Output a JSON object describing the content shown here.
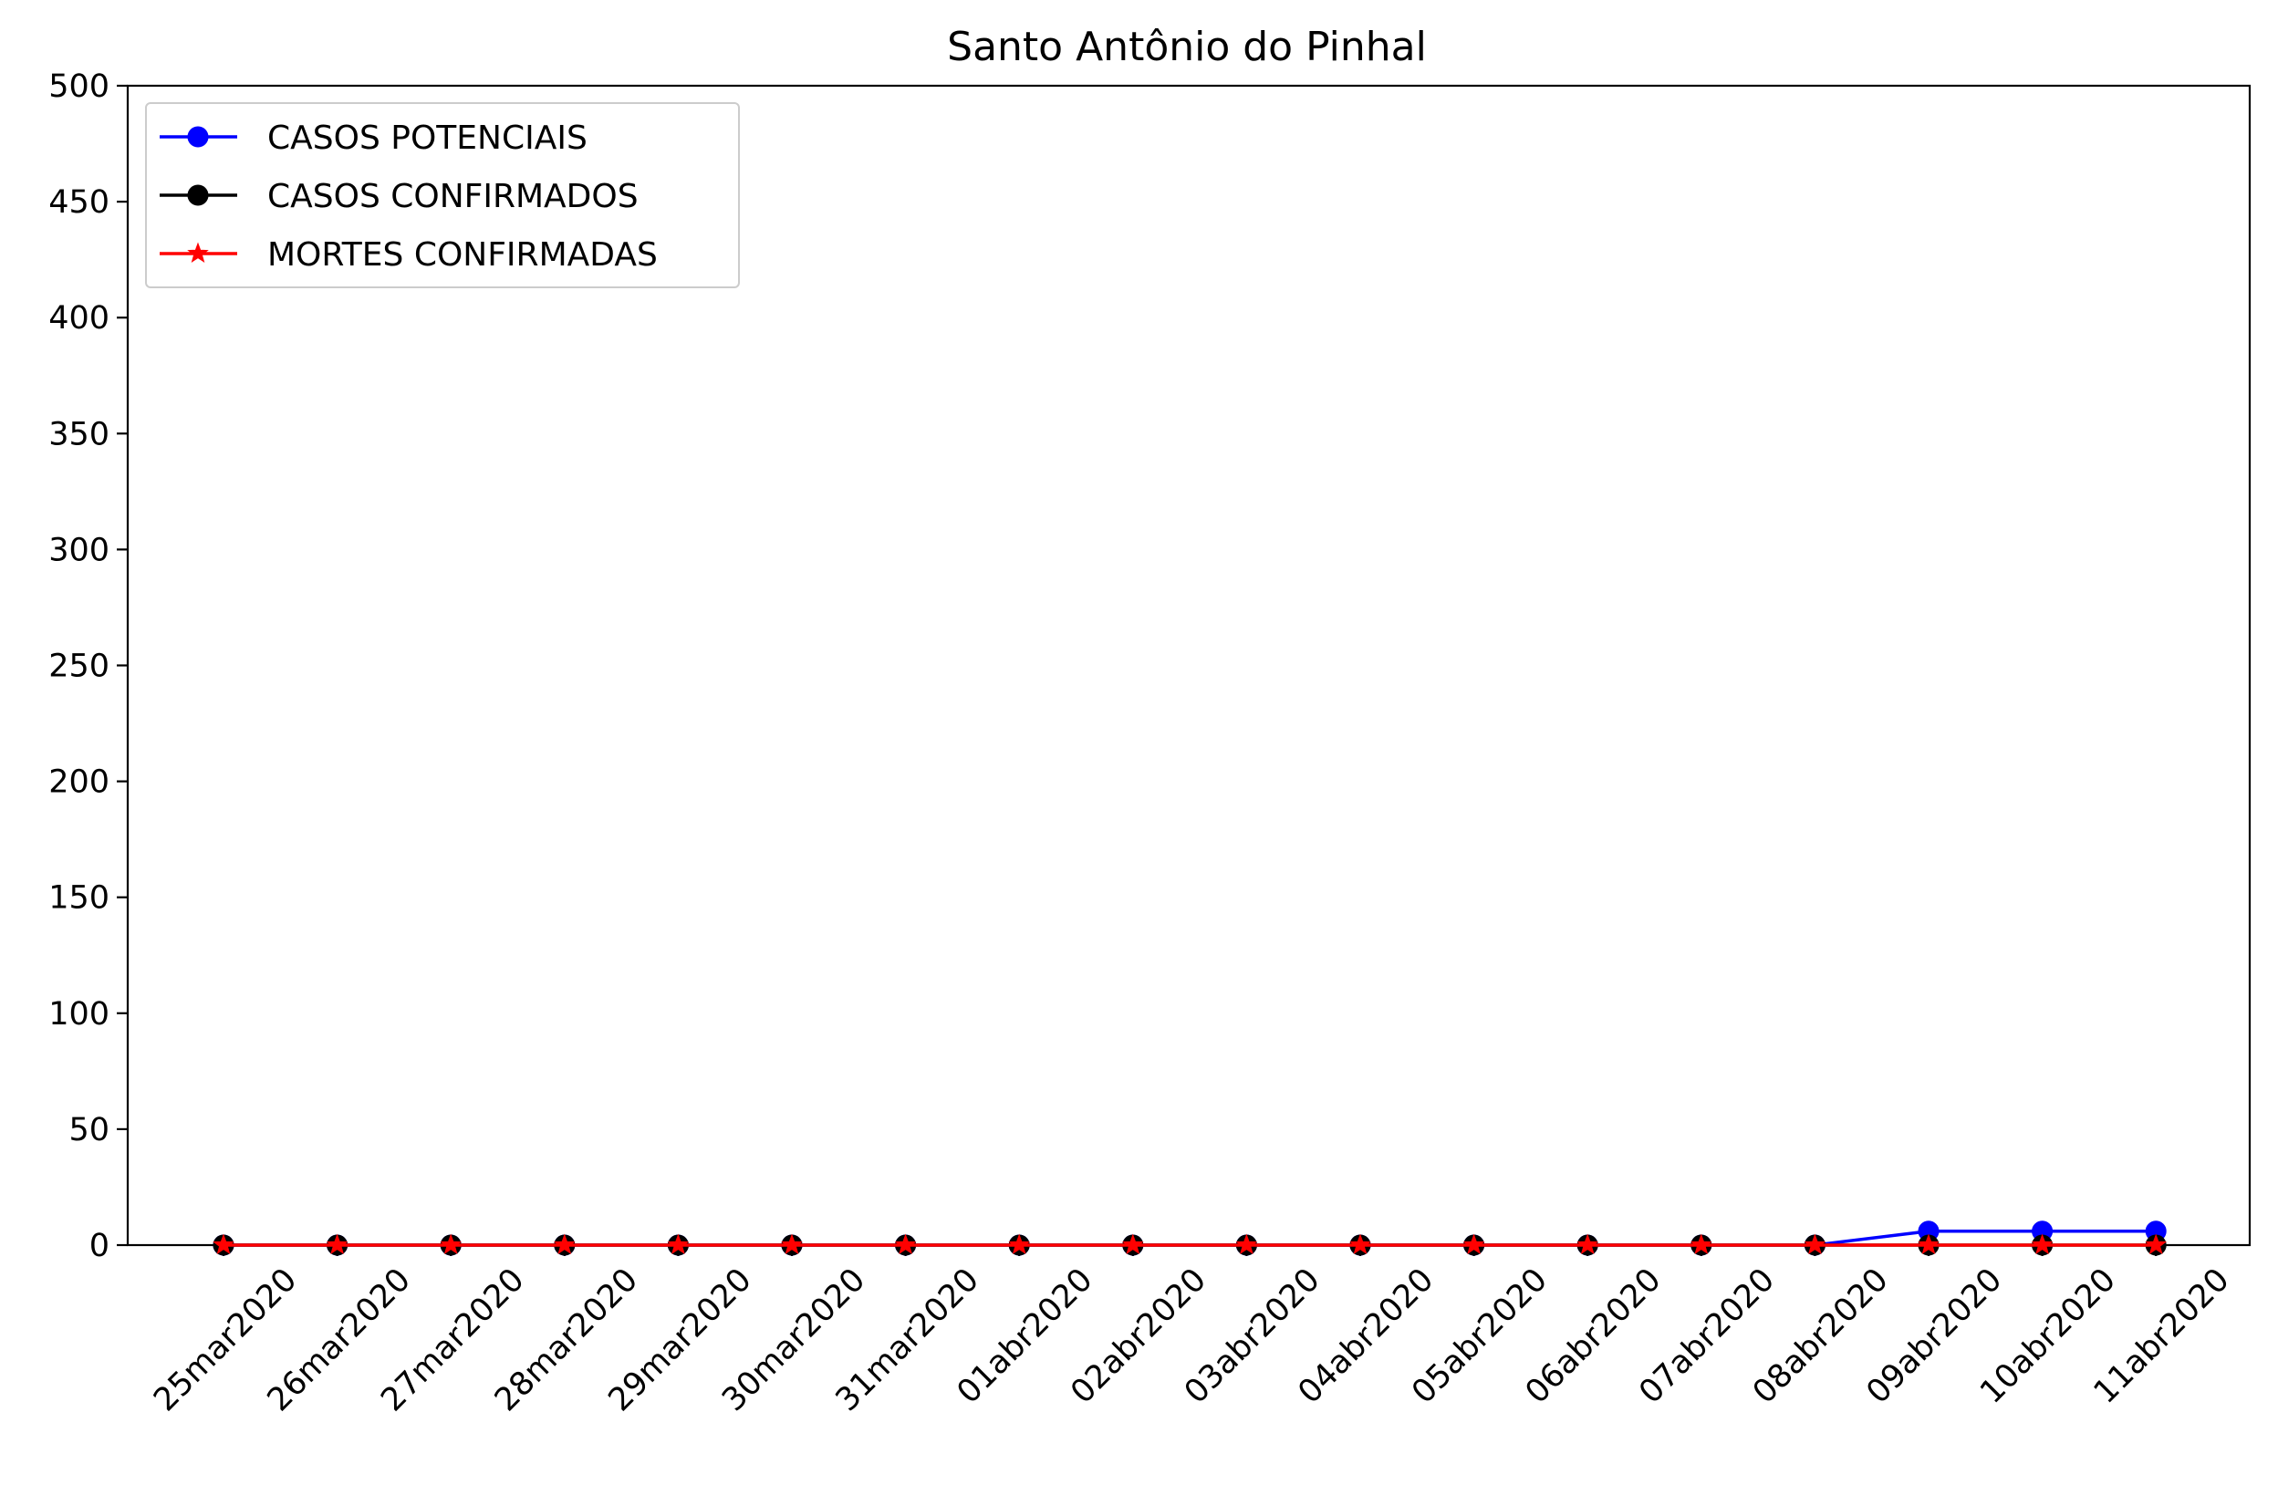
{
  "chart_data": {
    "type": "line",
    "title": "Santo Antônio do Pinhal",
    "xlabel": "",
    "ylabel": "",
    "ylim": [
      0,
      500
    ],
    "yticks": [
      "0",
      "50",
      "100",
      "150",
      "200",
      "250",
      "300",
      "350",
      "400",
      "450",
      "500"
    ],
    "categories": [
      "25mar2020",
      "26mar2020",
      "27mar2020",
      "28mar2020",
      "29mar2020",
      "30mar2020",
      "31mar2020",
      "01abr2020",
      "02abr2020",
      "03abr2020",
      "04abr2020",
      "05abr2020",
      "06abr2020",
      "07abr2020",
      "08abr2020",
      "09abr2020",
      "10abr2020",
      "11abr2020"
    ],
    "series": [
      {
        "name": "CASOS POTENCIAIS",
        "color": "#0000ff",
        "marker": "circle",
        "values": [
          0,
          0,
          0,
          0,
          0,
          0,
          0,
          0,
          0,
          0,
          0,
          0,
          0,
          0,
          0,
          6,
          6,
          6
        ]
      },
      {
        "name": "CASOS CONFIRMADOS",
        "color": "#000000",
        "marker": "circle",
        "values": [
          0,
          0,
          0,
          0,
          0,
          0,
          0,
          0,
          0,
          0,
          0,
          0,
          0,
          0,
          0,
          0,
          0,
          0
        ]
      },
      {
        "name": "MORTES CONFIRMADAS",
        "color": "#ff0000",
        "marker": "star",
        "values": [
          0,
          0,
          0,
          0,
          0,
          0,
          0,
          0,
          0,
          0,
          0,
          0,
          0,
          0,
          0,
          0,
          0,
          0
        ]
      }
    ],
    "grid": false,
    "legend_position": "top-left"
  }
}
